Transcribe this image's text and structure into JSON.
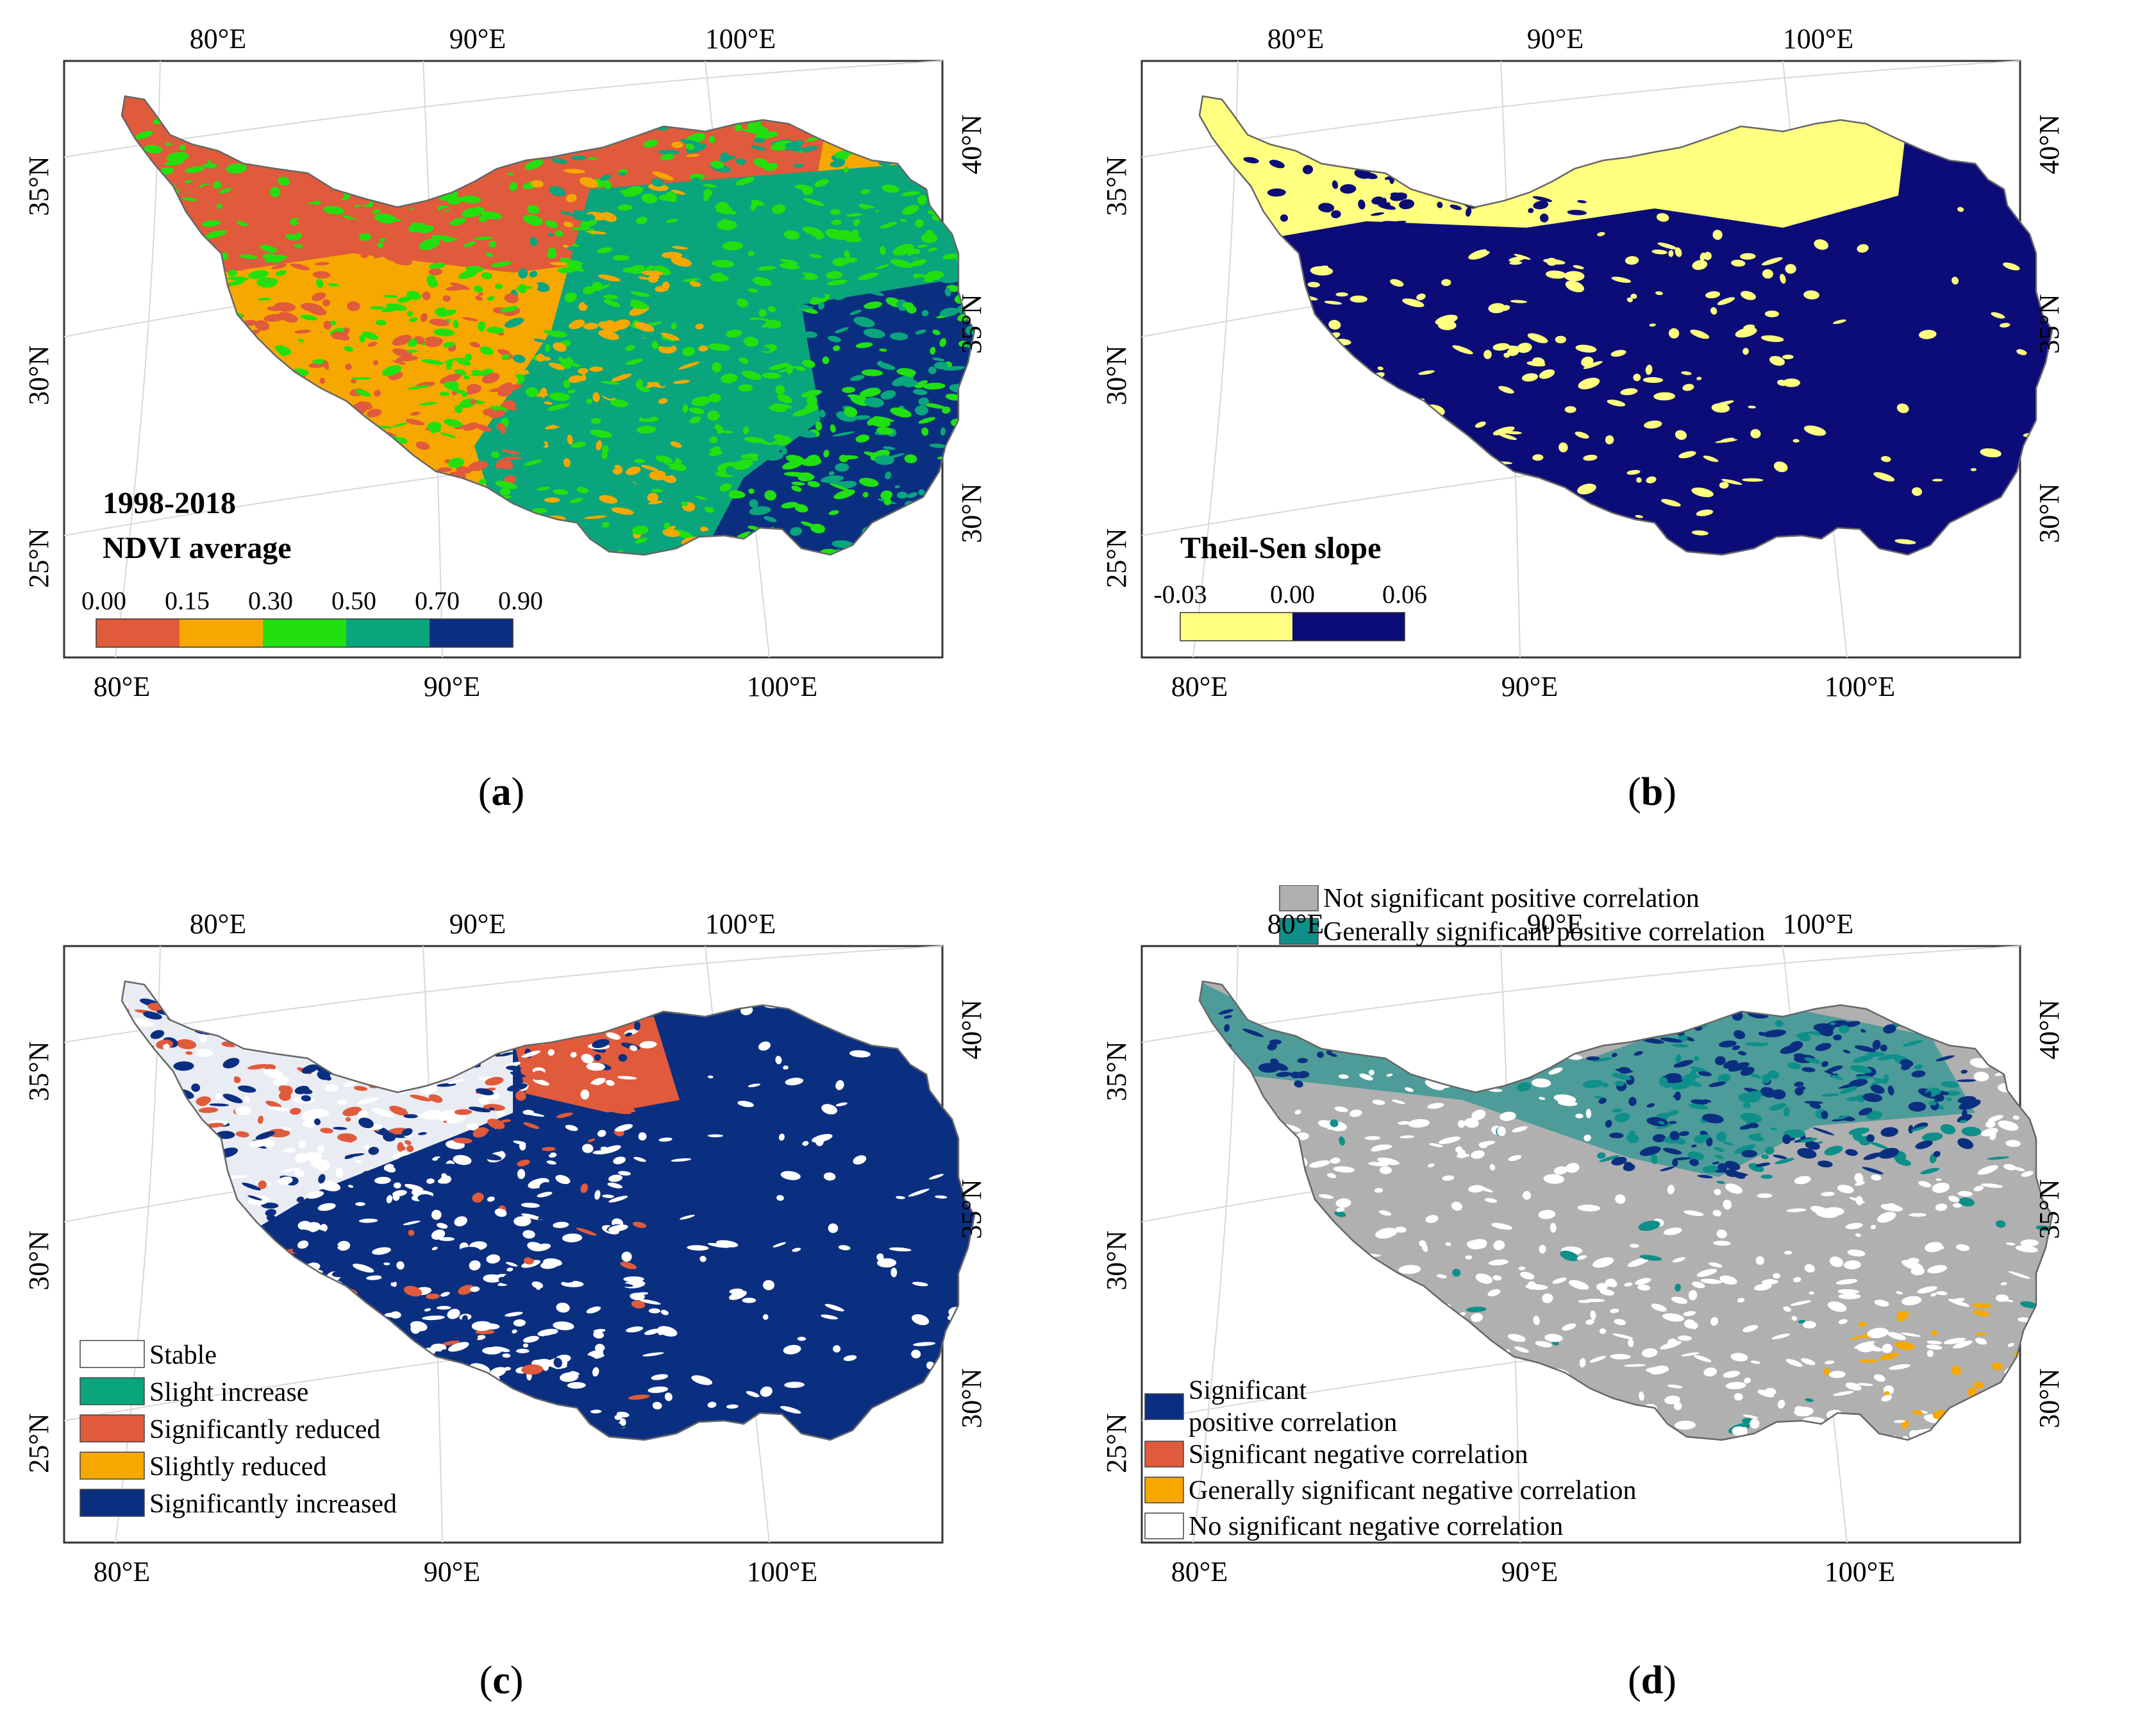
{
  "panels": {
    "a": {
      "caption": "a",
      "title_line1": "1998-2018",
      "title_line2": "NDVI average",
      "colorbar_labels": [
        "0.00",
        "0.15",
        "0.30",
        "0.50",
        "0.70",
        "0.90"
      ],
      "colorbar_colors": [
        "#e05a3c",
        "#f7a800",
        "#22e010",
        "#0aa57c",
        "#0b2f80"
      ],
      "top_lon": [
        "80°E",
        "90°E",
        "100°E"
      ],
      "bottom_lon": [
        "80°E",
        "90°E",
        "100°E"
      ],
      "left_lat": [
        "35°N",
        "30°N",
        "25°N"
      ],
      "right_lat": [
        "40°N",
        "35°N",
        "30°N"
      ]
    },
    "b": {
      "caption": "b",
      "title": "Theil-Sen slope",
      "colorbar_labels": [
        "-0.03",
        "0.00",
        "0.06"
      ],
      "colorbar_colors": [
        "#ffff80",
        "#0c0c78"
      ],
      "top_lon": [
        "80°E",
        "90°E",
        "100°E"
      ],
      "bottom_lon": [
        "80°E",
        "90°E",
        "100°E"
      ],
      "left_lat": [
        "35°N",
        "30°N",
        "25°N"
      ],
      "right_lat": [
        "40°N",
        "35°N",
        "30°N"
      ]
    },
    "c": {
      "caption": "c",
      "legend": [
        {
          "label": "Stable",
          "color": "#ffffff"
        },
        {
          "label": "Slight increase",
          "color": "#0aa57c"
        },
        {
          "label": "Significantly reduced",
          "color": "#e05a3c"
        },
        {
          "label": "Slightly reduced",
          "color": "#f7a800"
        },
        {
          "label": "Significantly increased",
          "color": "#0b2f80"
        }
      ],
      "top_lon": [
        "80°E",
        "90°E",
        "100°E"
      ],
      "bottom_lon": [
        "80°E",
        "90°E",
        "100°E"
      ],
      "left_lat": [
        "35°N",
        "30°N",
        "25°N"
      ],
      "right_lat": [
        "40°N",
        "35°N",
        "30°N"
      ]
    },
    "d": {
      "caption": "d",
      "legend_top": [
        {
          "label": "Not significant positive correlation",
          "color": "#b0b0b0"
        },
        {
          "label": "Generally significant positive correlation",
          "color": "#0e8f8a"
        }
      ],
      "legend_bottom": [
        {
          "label": "Significant",
          "label2": "positive correlation",
          "color": "#0b2f80"
        },
        {
          "label": "Significant negative correlation",
          "color": "#e05a3c"
        },
        {
          "label": "Generally significant negative correlation",
          "color": "#f7a800"
        },
        {
          "label": "No significant negative correlation",
          "color": "#ffffff"
        }
      ],
      "top_lon": [
        "80°E",
        "90°E",
        "100°E"
      ],
      "bottom_lon": [
        "80°E",
        "90°E",
        "100°E"
      ],
      "left_lat": [
        "35°N",
        "30°N",
        "25°N"
      ],
      "right_lat": [
        "40°N",
        "35°N",
        "30°N"
      ]
    }
  }
}
